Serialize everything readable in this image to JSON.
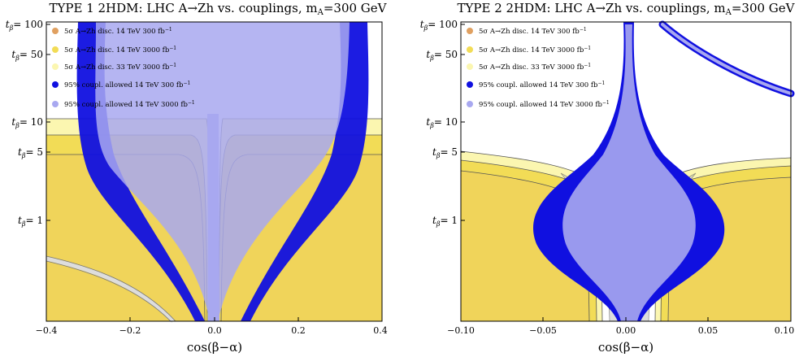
{
  "chart_data": [
    {
      "type": "area",
      "title": "TYPE 1 2HDM: LHC A→Zh vs. couplings, m",
      "title_sub": "A",
      "title_tail": "=300 GeV",
      "xlabel": "cos(β−α)",
      "ylabel_prefix": "t",
      "ylabel_sub": "β",
      "xlim": [
        -0.4,
        0.4
      ],
      "ylim_log10": [
        -1,
        2
      ],
      "x_ticks": [
        {
          "value": -0.4,
          "label": "−0.4"
        },
        {
          "value": -0.2,
          "label": "−0.2"
        },
        {
          "value": 0.0,
          "label": "0.0"
        },
        {
          "value": 0.2,
          "label": "0.2"
        },
        {
          "value": 0.4,
          "label": "0.4"
        }
      ],
      "y_ticks": [
        {
          "value": 100,
          "label": "= 100"
        },
        {
          "value": 50,
          "label": "= 50"
        },
        {
          "value": 10,
          "label": "= 10"
        },
        {
          "value": 5,
          "label": "= 5"
        },
        {
          "value": 1,
          "label": "= 1"
        }
      ],
      "legend_position": "top-left",
      "series": [
        {
          "name": "5σ A→Zh disc. 14 TeV 300 fb",
          "sup": "−1",
          "color": "#e0a060",
          "kind": "region"
        },
        {
          "name": "5σ A→Zh disc. 14 TeV 3000 fb",
          "sup": "−1",
          "color": "#f2dc56",
          "kind": "region"
        },
        {
          "name": "5σ A→Zh disc. 33 TeV 3000 fb",
          "sup": "−1",
          "color": "#fbf6b0",
          "kind": "region"
        },
        {
          "name": "95% coupl. allowed 14 TeV 300 fb",
          "sup": "−1",
          "color": "#1010e0",
          "kind": "band"
        },
        {
          "name": "95% coupl. allowed 14 TeV 3000 fb",
          "sup": "−1",
          "color": "#a8a8f0",
          "kind": "band"
        }
      ],
      "regions": {
        "disc_33tev_upper_tb": 10.5,
        "disc_14tev_3000_upper_tb": 7.5,
        "disc_14tev_300_upper_tb": 4.6
      }
    },
    {
      "type": "area",
      "title": "TYPE 2 2HDM: LHC A→Zh vs. couplings, m",
      "title_sub": "A",
      "title_tail": "=300 GeV",
      "xlabel": "cos(β−α)",
      "ylabel_prefix": "t",
      "ylabel_sub": "β",
      "xlim": [
        -0.1,
        0.1
      ],
      "ylim_log10": [
        -1,
        2
      ],
      "x_ticks": [
        {
          "value": -0.1,
          "label": "−0.10"
        },
        {
          "value": -0.05,
          "label": "−0.05"
        },
        {
          "value": 0.0,
          "label": "0.00"
        },
        {
          "value": 0.05,
          "label": "0.05"
        },
        {
          "value": 0.1,
          "label": "0.10"
        }
      ],
      "y_ticks": [
        {
          "value": 100,
          "label": "= 100"
        },
        {
          "value": 50,
          "label": "= 50"
        },
        {
          "value": 10,
          "label": "= 10"
        },
        {
          "value": 5,
          "label": "= 5"
        },
        {
          "value": 1,
          "label": "= 1"
        }
      ],
      "legend_position": "top-left",
      "series": [
        {
          "name": "5σ A→Zh disc. 14 TeV 300 fb",
          "sup": "−1",
          "color": "#e0a060",
          "kind": "region"
        },
        {
          "name": "5σ A→Zh disc. 14 TeV 3000 fb",
          "sup": "−1",
          "color": "#f2dc56",
          "kind": "region"
        },
        {
          "name": "5σ A→Zh disc. 33 TeV 3000 fb",
          "sup": "−1",
          "color": "#fbf6b0",
          "kind": "region"
        },
        {
          "name": "95% coupl. allowed 14 TeV 300 fb",
          "sup": "−1",
          "color": "#1010e0",
          "kind": "band"
        },
        {
          "name": "95% coupl. allowed 14 TeV 3000 fb",
          "sup": "−1",
          "color": "#a8a8f0",
          "kind": "band"
        }
      ]
    }
  ]
}
